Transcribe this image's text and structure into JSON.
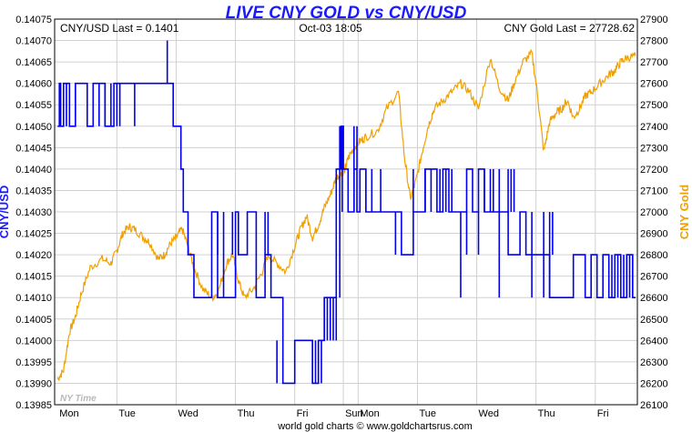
{
  "chart_data": {
    "type": "line",
    "title": "LIVE CNY GOLD vs CNY/USD",
    "info": {
      "left": "CNY/USD Last = 0.1401",
      "center": "Oct-03  18:05",
      "right": "CNY Gold Last = 27728.62"
    },
    "ylabel_left": "CNY/USD",
    "ylabel_right": "CNY Gold",
    "ylim_left": [
      0.13985,
      0.14075
    ],
    "ylim_right": [
      26100,
      27900
    ],
    "yticks_left": [
      "0.14075",
      "0.14070",
      "0.14065",
      "0.14060",
      "0.14055",
      "0.14050",
      "0.14045",
      "0.14040",
      "0.14035",
      "0.14030",
      "0.14025",
      "0.14020",
      "0.14015",
      "0.14010",
      "0.14005",
      "0.14000",
      "0.13995",
      "0.13990",
      "0.13985"
    ],
    "yticks_right": [
      "27900",
      "27800",
      "27700",
      "27600",
      "27500",
      "27400",
      "27300",
      "27200",
      "27100",
      "27000",
      "26900",
      "26800",
      "26700",
      "26600",
      "26500",
      "26400",
      "26300",
      "26200",
      "26100"
    ],
    "x_labels": [
      "Mon",
      "Tue",
      "Wed",
      "Thu",
      "Fri",
      "Sun",
      "Mon",
      "Tue",
      "Wed",
      "Thu",
      "Fri"
    ],
    "x_label_positions_days": [
      0,
      1,
      2,
      3,
      4,
      4.82,
      5.07,
      6.07,
      7.07,
      8.07,
      9.07
    ],
    "x_range_days": [
      -0.05,
      9.78
    ],
    "grid": true,
    "watermark": "NY Time",
    "footer": "world gold charts © www.goldchartsrus.com",
    "series": [
      {
        "name": "CNY/USD",
        "axis": "left",
        "color": "#0000ee",
        "step": true,
        "x": [
          0.0,
          0.03,
          0.05,
          0.1,
          0.2,
          0.3,
          0.5,
          0.6,
          0.8,
          0.95,
          1.1,
          1.3,
          1.45,
          1.6,
          1.75,
          1.85,
          1.95,
          2.0,
          2.08,
          2.12,
          2.2,
          2.3,
          2.45,
          2.6,
          2.7,
          2.9,
          3.0,
          3.05,
          3.2,
          3.35,
          3.5,
          3.6,
          3.8,
          4.0,
          4.15,
          4.3,
          4.4,
          4.5,
          4.6,
          4.7,
          4.78,
          4.82,
          4.85,
          4.9,
          5.0,
          5.05,
          5.1,
          5.2,
          5.3,
          5.4,
          5.6,
          5.8,
          6.0,
          6.05,
          6.2,
          6.4,
          6.5,
          6.55,
          6.6,
          6.8,
          6.9,
          7.0,
          7.1,
          7.2,
          7.4,
          7.6,
          7.8,
          7.9,
          8.0,
          8.1,
          8.3,
          8.5,
          8.7,
          8.9,
          9.0,
          9.1,
          9.2,
          9.3,
          9.4,
          9.5,
          9.6,
          9.7,
          9.75
        ],
        "y": [
          0.1405,
          0.1406,
          0.1405,
          0.1406,
          0.1405,
          0.1406,
          0.1405,
          0.1406,
          0.1405,
          0.1406,
          0.1406,
          0.1406,
          0.1406,
          0.1406,
          0.1406,
          0.1406,
          0.1405,
          0.1405,
          0.1404,
          0.1403,
          0.1402,
          0.1401,
          0.1401,
          0.1403,
          0.1401,
          0.1401,
          0.1403,
          0.1402,
          0.1403,
          0.1401,
          0.1402,
          0.1401,
          0.1399,
          0.14,
          0.14,
          0.1399,
          0.14,
          0.1401,
          0.1401,
          0.1404,
          0.1405,
          0.1404,
          0.1404,
          0.1403,
          0.1404,
          0.1403,
          0.1404,
          0.1403,
          0.1403,
          0.1403,
          0.1403,
          0.1402,
          0.1403,
          0.1403,
          0.1404,
          0.1403,
          0.1404,
          0.1404,
          0.1403,
          0.1403,
          0.1404,
          0.1403,
          0.1404,
          0.1403,
          0.1403,
          0.1402,
          0.1403,
          0.1402,
          0.1402,
          0.1402,
          0.1401,
          0.1401,
          0.1402,
          0.1401,
          0.1402,
          0.1401,
          0.1402,
          0.1401,
          0.1402,
          0.1401,
          0.1402,
          0.1401,
          0.1401
        ],
        "spikes": [
          [
            0.05,
            0.1405,
            0.1406
          ],
          [
            0.15,
            0.1405,
            0.1406
          ],
          [
            0.3,
            0.1405,
            0.1406
          ],
          [
            0.7,
            0.1405,
            0.1406
          ],
          [
            0.8,
            0.1405,
            0.1406
          ],
          [
            0.9,
            0.1405,
            0.1406
          ],
          [
            1.0,
            0.1405,
            0.1406
          ],
          [
            1.05,
            0.1405,
            0.1406
          ],
          [
            1.3,
            0.1405,
            0.1406
          ],
          [
            1.85,
            0.1406,
            0.1407
          ],
          [
            2.7,
            0.1402,
            0.1403
          ],
          [
            2.8,
            0.1401,
            0.1403
          ],
          [
            2.95,
            0.1402,
            0.1403
          ],
          [
            3.5,
            0.1402,
            0.1403
          ],
          [
            3.55,
            0.1402,
            0.1403
          ],
          [
            3.7,
            0.1399,
            0.14
          ],
          [
            4.3,
            0.1399,
            0.14
          ],
          [
            4.35,
            0.1399,
            0.14
          ],
          [
            4.4,
            0.1399,
            0.14
          ],
          [
            4.45,
            0.1399,
            0.14
          ],
          [
            4.5,
            0.14,
            0.1401
          ],
          [
            4.55,
            0.14,
            0.1401
          ],
          [
            4.6,
            0.14,
            0.1401
          ],
          [
            4.65,
            0.14,
            0.1401
          ],
          [
            4.7,
            0.14,
            0.1401
          ],
          [
            4.76,
            0.1401,
            0.1405
          ],
          [
            4.8,
            0.1403,
            0.1405
          ],
          [
            5.0,
            0.1403,
            0.1405
          ],
          [
            5.05,
            0.1404,
            0.1405
          ],
          [
            5.2,
            0.1403,
            0.1404
          ],
          [
            5.3,
            0.1403,
            0.1404
          ],
          [
            5.45,
            0.1403,
            0.1404
          ],
          [
            5.7,
            0.1402,
            0.1403
          ],
          [
            6.0,
            0.1403,
            0.1404
          ],
          [
            6.2,
            0.1403,
            0.1404
          ],
          [
            6.3,
            0.1403,
            0.1404
          ],
          [
            6.45,
            0.1403,
            0.1404
          ],
          [
            6.55,
            0.1403,
            0.1404
          ],
          [
            6.65,
            0.1403,
            0.1404
          ],
          [
            6.8,
            0.1401,
            0.1403
          ],
          [
            6.9,
            0.1402,
            0.1403
          ],
          [
            7.1,
            0.1402,
            0.1403
          ],
          [
            7.2,
            0.1403,
            0.1404
          ],
          [
            7.3,
            0.1403,
            0.1404
          ],
          [
            7.35,
            0.1403,
            0.1404
          ],
          [
            7.45,
            0.1401,
            0.1404
          ],
          [
            7.6,
            0.1403,
            0.1404
          ],
          [
            7.65,
            0.1403,
            0.1404
          ],
          [
            7.7,
            0.1403,
            0.1404
          ],
          [
            8.0,
            0.1401,
            0.1403
          ],
          [
            8.2,
            0.1401,
            0.1403
          ],
          [
            8.3,
            0.1401,
            0.1403
          ],
          [
            8.35,
            0.1402,
            0.1403
          ],
          [
            9.35,
            0.1401,
            0.1402
          ],
          [
            9.45,
            0.1401,
            0.1402
          ],
          [
            9.55,
            0.1401,
            0.1402
          ],
          [
            9.6,
            0.1401,
            0.1402
          ],
          [
            9.65,
            0.1401,
            0.1402
          ],
          [
            9.7,
            0.1401,
            0.1402
          ]
        ]
      },
      {
        "name": "CNY Gold",
        "axis": "right",
        "color": "#f0a000",
        "step": false,
        "x": [
          0.0,
          0.1,
          0.2,
          0.3,
          0.4,
          0.55,
          0.75,
          0.9,
          1.0,
          1.1,
          1.2,
          1.3,
          1.45,
          1.55,
          1.7,
          1.8,
          1.9,
          2.0,
          2.1,
          2.2,
          2.3,
          2.45,
          2.6,
          2.7,
          2.85,
          2.95,
          3.05,
          3.15,
          3.3,
          3.45,
          3.55,
          3.7,
          3.85,
          4.0,
          4.1,
          4.2,
          4.3,
          4.4,
          4.5,
          4.6,
          4.7,
          4.8,
          4.85,
          4.9,
          5.0,
          5.1,
          5.2,
          5.4,
          5.55,
          5.75,
          5.85,
          5.95,
          6.05,
          6.15,
          6.25,
          6.35,
          6.5,
          6.65,
          6.8,
          6.95,
          7.1,
          7.3,
          7.45,
          7.6,
          7.7,
          7.85,
          8.0,
          8.1,
          8.2,
          8.3,
          8.4,
          8.5,
          8.6,
          8.7,
          8.8,
          8.9,
          9.0,
          9.15,
          9.3,
          9.4,
          9.5,
          9.6,
          9.75
        ],
        "y": [
          26220,
          26260,
          26440,
          26510,
          26620,
          26740,
          26780,
          26760,
          26820,
          26900,
          26930,
          26920,
          26880,
          26860,
          26780,
          26800,
          26850,
          26880,
          26920,
          26840,
          26740,
          26640,
          26600,
          26620,
          26760,
          26800,
          26680,
          26600,
          26640,
          26720,
          26800,
          26760,
          26720,
          26840,
          26920,
          26980,
          26880,
          26940,
          27020,
          27080,
          27160,
          27180,
          27200,
          27250,
          27300,
          27330,
          27350,
          27380,
          27480,
          27560,
          27260,
          27060,
          27150,
          27280,
          27400,
          27480,
          27520,
          27560,
          27600,
          27560,
          27480,
          27720,
          27580,
          27520,
          27600,
          27700,
          27740,
          27540,
          27280,
          27420,
          27460,
          27480,
          27520,
          27440,
          27480,
          27540,
          27560,
          27600,
          27640,
          27660,
          27700,
          27720,
          27728.62
        ]
      }
    ]
  }
}
